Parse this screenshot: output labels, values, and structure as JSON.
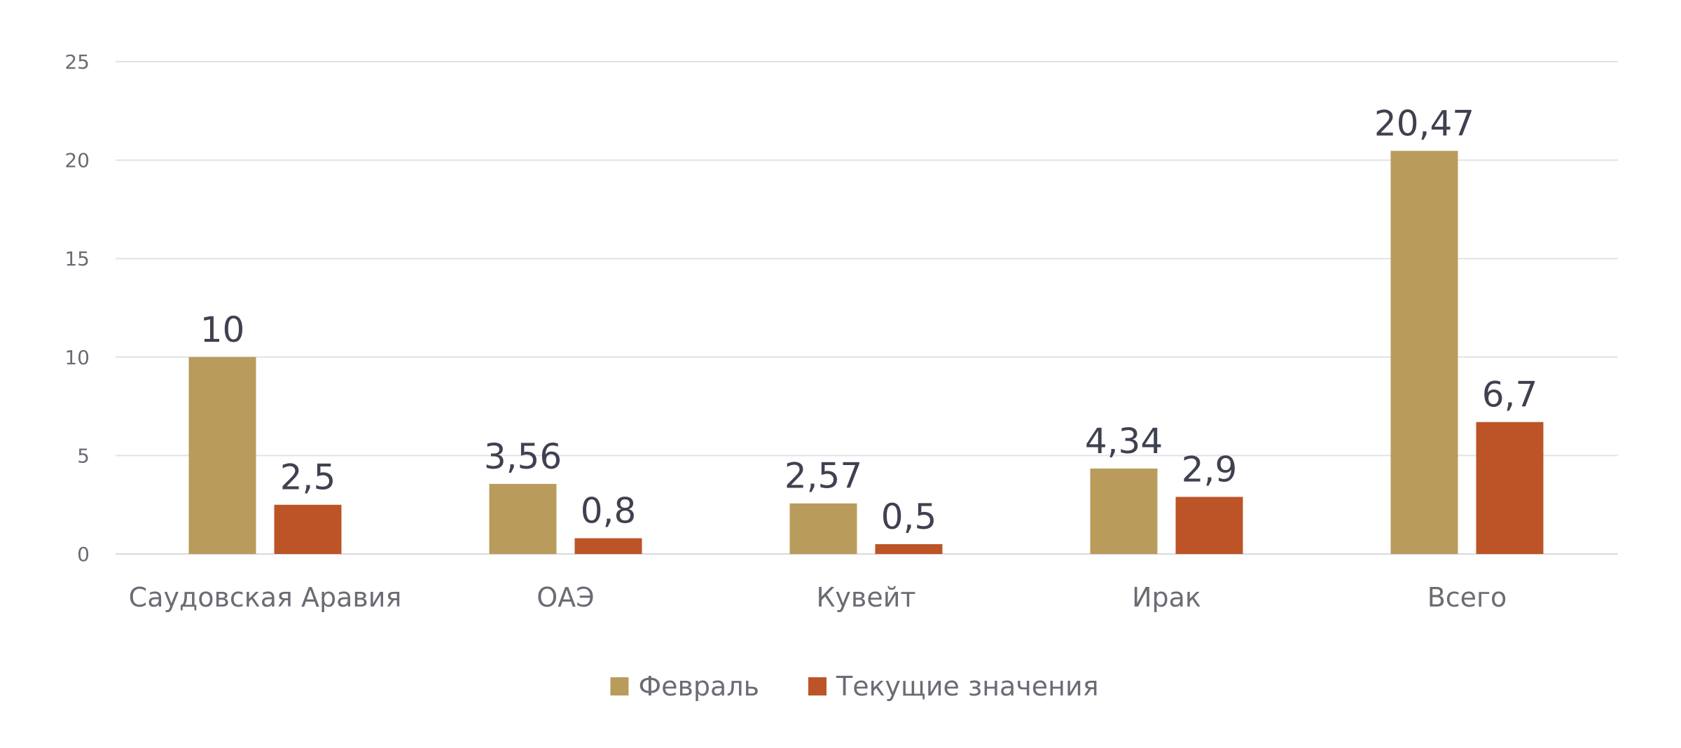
{
  "chart_data": {
    "type": "bar",
    "title": "",
    "xlabel": "",
    "ylabel": "",
    "categories": [
      "Саудовская Аравия",
      "ОАЭ",
      "Кувейт",
      "Ирак",
      "Всего"
    ],
    "series": [
      {
        "name": "Февраль",
        "color": "#b99c5c",
        "values": [
          10,
          3.56,
          2.57,
          4.34,
          20.47
        ],
        "labels": [
          "10",
          "3,56",
          "2,57",
          "4,34",
          "20,47"
        ]
      },
      {
        "name": "Текущие значения",
        "color": "#bc5427",
        "values": [
          2.5,
          0.8,
          0.5,
          2.9,
          6.7
        ],
        "labels": [
          "2,5",
          "0,8",
          "0,5",
          "2,9",
          "6,7"
        ]
      }
    ],
    "ylim": [
      0,
      25
    ],
    "yticks": [
      0,
      5,
      10,
      15,
      20,
      25
    ],
    "grid": true,
    "legend_position": "bottom"
  }
}
